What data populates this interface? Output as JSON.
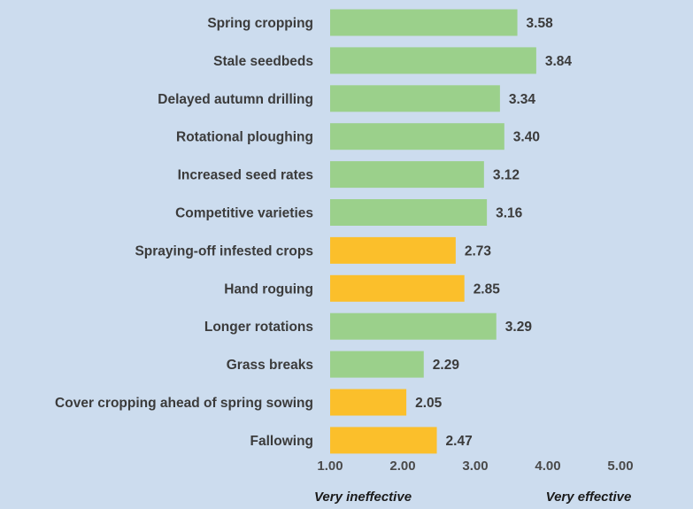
{
  "chart_data": {
    "type": "bar",
    "orientation": "horizontal",
    "title": "",
    "xlabel": "",
    "ylabel": "",
    "categories": [
      "Spring cropping",
      "Stale seedbeds",
      "Delayed autumn drilling",
      "Rotational ploughing",
      "Increased seed rates",
      "Competitive varieties",
      "Spraying-off infested crops",
      "Hand roguing",
      "Longer rotations",
      "Grass breaks",
      "Cover cropping ahead of spring sowing",
      "Fallowing"
    ],
    "values": [
      3.58,
      3.84,
      3.34,
      3.4,
      3.12,
      3.16,
      2.73,
      2.85,
      3.29,
      2.29,
      2.05,
      2.47
    ],
    "value_labels": [
      "3.58",
      "3.84",
      "3.34",
      "3.40",
      "3.12",
      "3.16",
      "2.73",
      "2.85",
      "3.29",
      "2.29",
      "2.05",
      "2.47"
    ],
    "bar_colors": [
      "#9bd08b",
      "#9bd08b",
      "#9bd08b",
      "#9bd08b",
      "#9bd08b",
      "#9bd08b",
      "#fbbf2b",
      "#fbbf2b",
      "#9bd08b",
      "#9bd08b",
      "#fbbf2b",
      "#fbbf2b"
    ],
    "xlim": [
      1.0,
      5.0
    ],
    "xticks": [
      1.0,
      2.0,
      3.0,
      4.0,
      5.0
    ],
    "xtick_labels": [
      "1.00",
      "2.00",
      "3.00",
      "4.00",
      "5.00"
    ],
    "grid": false,
    "axis_annotations": {
      "left": "Very ineffective",
      "right": "Very effective"
    },
    "background_color": "#ccdcee"
  }
}
